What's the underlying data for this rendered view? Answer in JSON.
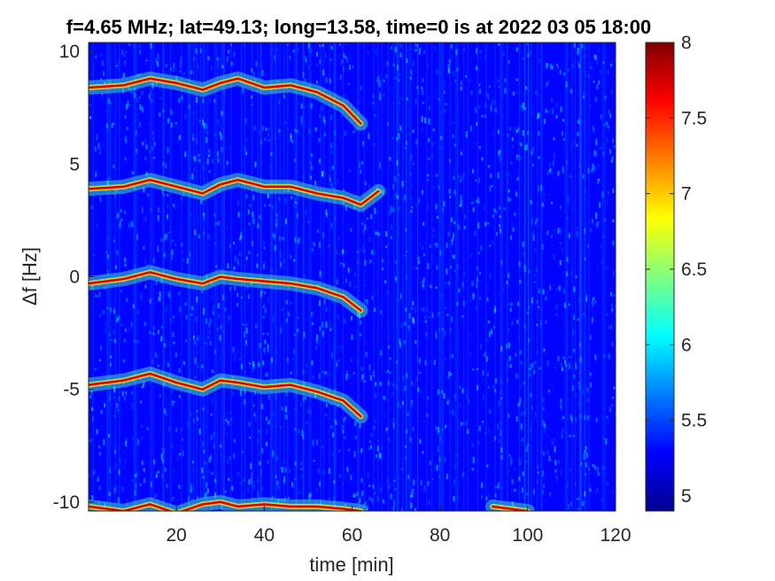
{
  "chart_data": {
    "type": "heatmap",
    "title": "f=4.65 MHz;  lat=49.13; long=13.58, time=0 is at 2022 03 05 18:00",
    "xlabel": "time [min]",
    "ylabel": "Δf [Hz]",
    "xlim": [
      0,
      120
    ],
    "ylim": [
      -10.4,
      10.4
    ],
    "x_ticks": [
      20,
      40,
      60,
      80,
      100,
      120
    ],
    "y_ticks": [
      -10,
      -5,
      0,
      5,
      10
    ],
    "y_tick_labels": [
      "-10",
      "-5",
      "0",
      "5",
      "10"
    ],
    "colorbar": {
      "range": [
        4.9,
        8
      ],
      "ticks": [
        5,
        5.5,
        6,
        6.5,
        7,
        7.5,
        8
      ],
      "tick_labels": [
        "5",
        "5.5",
        "6",
        "6.5",
        "7",
        "7.5",
        "8"
      ],
      "colormap": "jet"
    },
    "background_level": 5.3,
    "series": [
      {
        "x": [
          0,
          8,
          14,
          20,
          26,
          30,
          34,
          40,
          46,
          52,
          58,
          62
        ],
        "y": [
          8.4,
          8.5,
          8.8,
          8.6,
          8.3,
          8.6,
          8.8,
          8.4,
          8.5,
          8.2,
          7.6,
          6.8
        ]
      },
      {
        "x": [
          0,
          8,
          14,
          20,
          26,
          30,
          34,
          40,
          46,
          52,
          58,
          62,
          66
        ],
        "y": [
          3.9,
          4.0,
          4.3,
          4.0,
          3.7,
          4.1,
          4.3,
          4.0,
          4.0,
          3.7,
          3.5,
          3.2,
          3.8
        ]
      },
      {
        "x": [
          0,
          8,
          14,
          20,
          26,
          30,
          34,
          40,
          46,
          52,
          58,
          62
        ],
        "y": [
          -0.3,
          -0.1,
          0.2,
          -0.1,
          -0.3,
          0.0,
          -0.1,
          -0.2,
          -0.3,
          -0.5,
          -0.9,
          -1.5
        ]
      },
      {
        "x": [
          0,
          8,
          14,
          20,
          26,
          30,
          34,
          40,
          46,
          52,
          58,
          62
        ],
        "y": [
          -4.8,
          -4.6,
          -4.3,
          -4.7,
          -5.0,
          -4.6,
          -4.7,
          -4.9,
          -4.8,
          -5.1,
          -5.5,
          -6.2
        ]
      },
      {
        "x": [
          0,
          8,
          14,
          20,
          26,
          30,
          34,
          40,
          46,
          52,
          58,
          62
        ],
        "y": [
          -10.2,
          -10.4,
          -10.1,
          -10.5,
          -10.1,
          -10.0,
          -10.2,
          -10.1,
          -10.2,
          -10.2,
          -10.3,
          -10.4
        ]
      },
      {
        "x": [
          92,
          96,
          100
        ],
        "y": [
          -10.2,
          -10.3,
          -10.4
        ]
      }
    ]
  }
}
